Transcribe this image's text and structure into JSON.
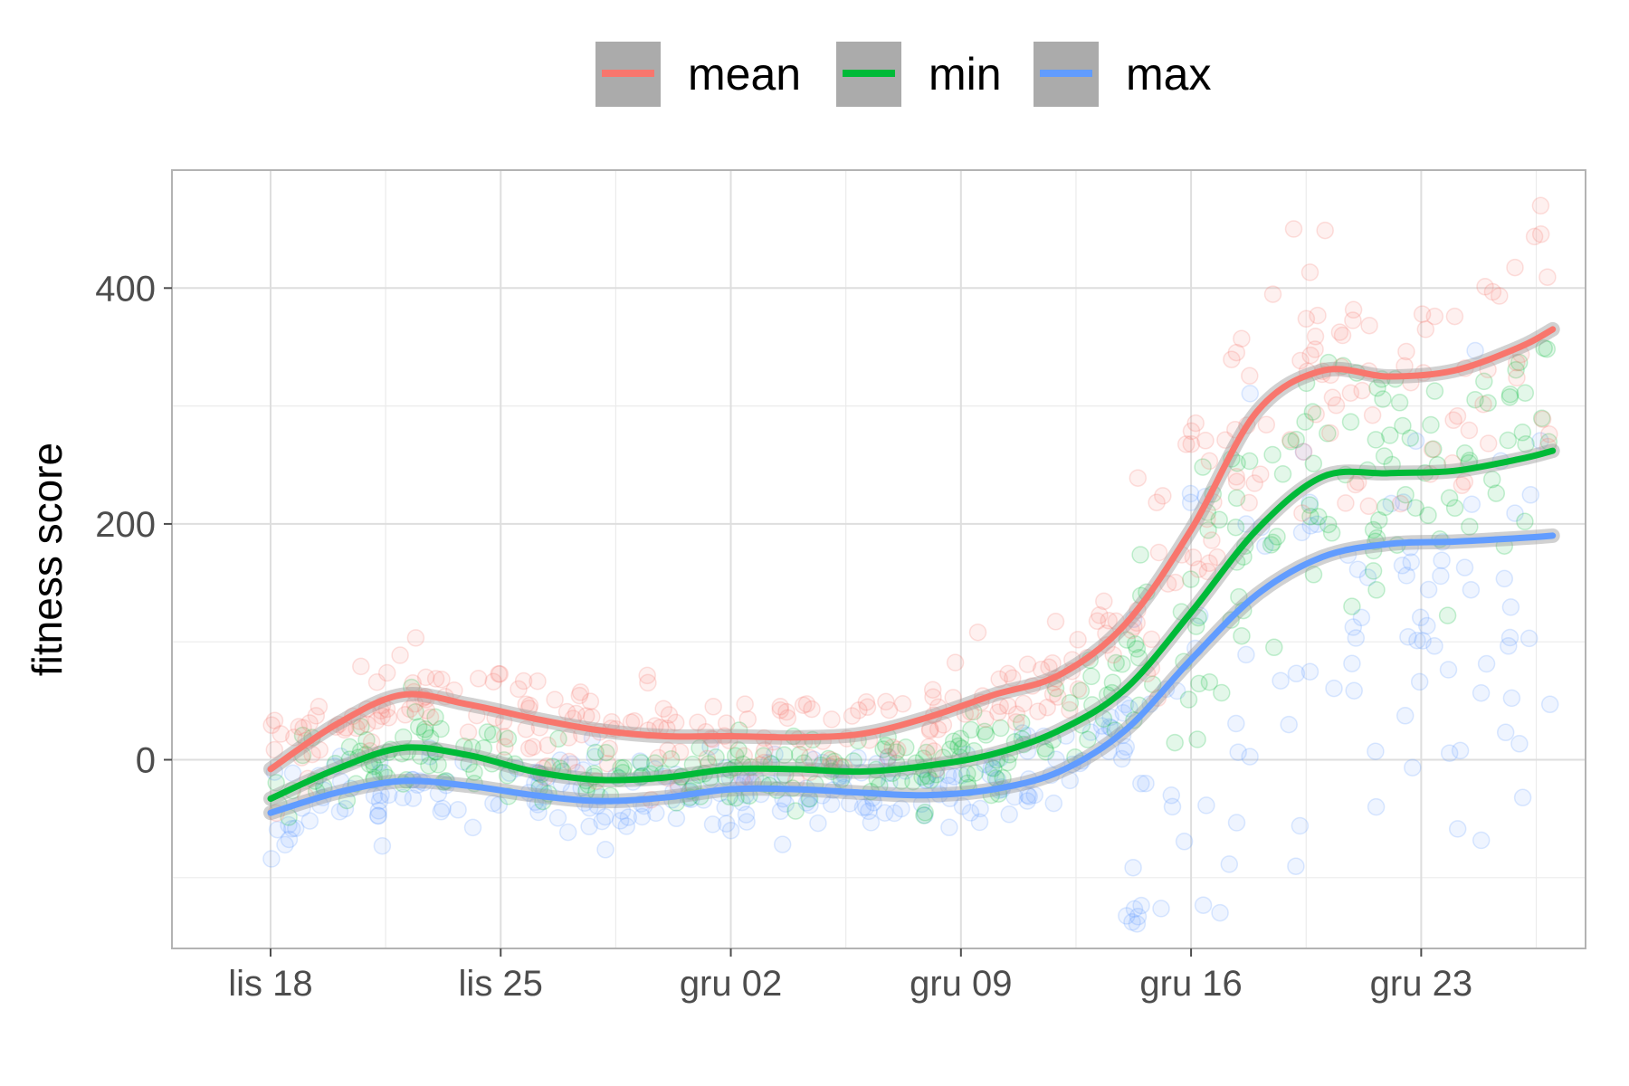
{
  "chart_data": {
    "type": "scatter",
    "title": "",
    "xlabel": "",
    "ylabel": "fitness score",
    "x_axis": {
      "kind": "date",
      "range": [
        "2023-11-15",
        "2023-12-28"
      ],
      "ticks": [
        {
          "date": "2023-11-18",
          "label": "lis 18"
        },
        {
          "date": "2023-11-25",
          "label": "lis 25"
        },
        {
          "date": "2023-12-02",
          "label": "gru 02"
        },
        {
          "date": "2023-12-09",
          "label": "gru 09"
        },
        {
          "date": "2023-12-16",
          "label": "gru 16"
        },
        {
          "date": "2023-12-23",
          "label": "gru 23"
        }
      ]
    },
    "y_axis": {
      "range": [
        -160,
        500
      ],
      "ticks": [
        0,
        200,
        400
      ],
      "minor_ticks": [
        -100,
        100,
        300,
        500
      ]
    },
    "grid": true,
    "legend": {
      "position": "top"
    },
    "series": [
      {
        "name": "mean",
        "color": "#F8766D",
        "smooth": [
          {
            "x": "2023-11-18",
            "y": -8
          },
          {
            "x": "2023-11-20",
            "y": 30
          },
          {
            "x": "2023-11-22",
            "y": 55
          },
          {
            "x": "2023-11-24",
            "y": 47
          },
          {
            "x": "2023-11-26",
            "y": 35
          },
          {
            "x": "2023-11-28",
            "y": 25
          },
          {
            "x": "2023-11-30",
            "y": 20
          },
          {
            "x": "2023-12-02",
            "y": 20
          },
          {
            "x": "2023-12-04",
            "y": 19
          },
          {
            "x": "2023-12-06",
            "y": 22
          },
          {
            "x": "2023-12-08",
            "y": 36
          },
          {
            "x": "2023-12-10",
            "y": 55
          },
          {
            "x": "2023-12-12",
            "y": 72
          },
          {
            "x": "2023-12-14",
            "y": 115
          },
          {
            "x": "2023-12-16",
            "y": 195
          },
          {
            "x": "2023-12-18",
            "y": 295
          },
          {
            "x": "2023-12-20",
            "y": 330
          },
          {
            "x": "2023-12-22",
            "y": 325
          },
          {
            "x": "2023-12-24",
            "y": 330
          },
          {
            "x": "2023-12-26",
            "y": 350
          },
          {
            "x": "2023-12-27",
            "y": 365
          }
        ]
      },
      {
        "name": "min",
        "color": "#00BA38",
        "smooth": [
          {
            "x": "2023-11-18",
            "y": -33
          },
          {
            "x": "2023-11-20",
            "y": -8
          },
          {
            "x": "2023-11-22",
            "y": 10
          },
          {
            "x": "2023-11-24",
            "y": 4
          },
          {
            "x": "2023-11-26",
            "y": -10
          },
          {
            "x": "2023-11-28",
            "y": -17
          },
          {
            "x": "2023-11-30",
            "y": -15
          },
          {
            "x": "2023-12-02",
            "y": -8
          },
          {
            "x": "2023-12-04",
            "y": -8
          },
          {
            "x": "2023-12-06",
            "y": -10
          },
          {
            "x": "2023-12-08",
            "y": -5
          },
          {
            "x": "2023-12-10",
            "y": 5
          },
          {
            "x": "2023-12-12",
            "y": 25
          },
          {
            "x": "2023-12-14",
            "y": 60
          },
          {
            "x": "2023-12-16",
            "y": 125
          },
          {
            "x": "2023-12-18",
            "y": 195
          },
          {
            "x": "2023-12-20",
            "y": 240
          },
          {
            "x": "2023-12-22",
            "y": 243
          },
          {
            "x": "2023-12-24",
            "y": 245
          },
          {
            "x": "2023-12-26",
            "y": 255
          },
          {
            "x": "2023-12-27",
            "y": 262
          }
        ]
      },
      {
        "name": "max",
        "color": "#619CFF",
        "smooth": [
          {
            "x": "2023-11-18",
            "y": -45
          },
          {
            "x": "2023-11-20",
            "y": -28
          },
          {
            "x": "2023-11-22",
            "y": -18
          },
          {
            "x": "2023-11-24",
            "y": -22
          },
          {
            "x": "2023-11-26",
            "y": -30
          },
          {
            "x": "2023-11-28",
            "y": -35
          },
          {
            "x": "2023-11-30",
            "y": -32
          },
          {
            "x": "2023-12-02",
            "y": -25
          },
          {
            "x": "2023-12-04",
            "y": -25
          },
          {
            "x": "2023-12-06",
            "y": -28
          },
          {
            "x": "2023-12-08",
            "y": -30
          },
          {
            "x": "2023-12-10",
            "y": -25
          },
          {
            "x": "2023-12-12",
            "y": -10
          },
          {
            "x": "2023-12-14",
            "y": 25
          },
          {
            "x": "2023-12-16",
            "y": 85
          },
          {
            "x": "2023-12-18",
            "y": 140
          },
          {
            "x": "2023-12-20",
            "y": 172
          },
          {
            "x": "2023-12-22",
            "y": 183
          },
          {
            "x": "2023-12-24",
            "y": 185
          },
          {
            "x": "2023-12-26",
            "y": 188
          },
          {
            "x": "2023-12-27",
            "y": 190
          }
        ]
      }
    ]
  }
}
